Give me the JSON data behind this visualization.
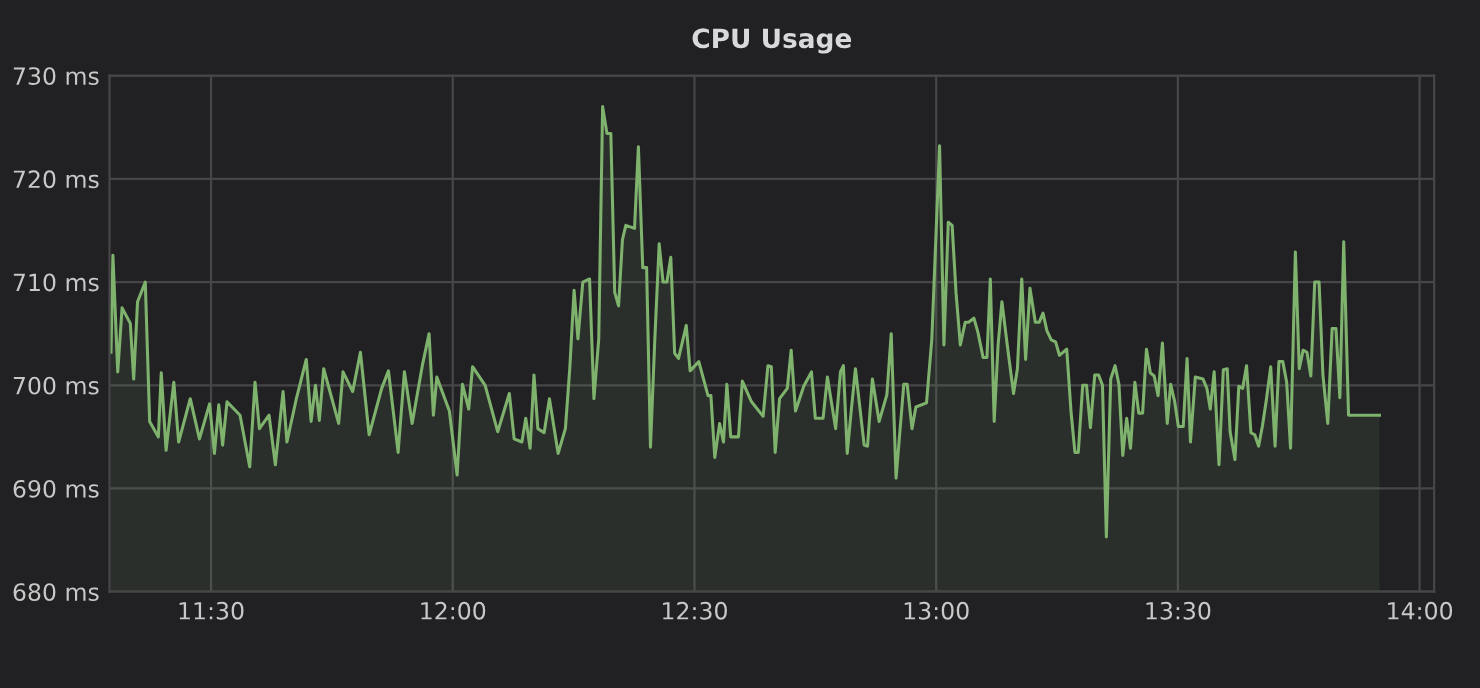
{
  "chart_data": {
    "type": "area",
    "title": "CPU Usage",
    "x": [
      11.293,
      11.297,
      11.307,
      11.316,
      11.333,
      11.34,
      11.348,
      11.364,
      11.373,
      11.391,
      11.397,
      11.407,
      11.423,
      11.433,
      11.457,
      11.476,
      11.497,
      11.507,
      11.516,
      11.524,
      11.533,
      11.56,
      11.58,
      11.591,
      11.6,
      11.62,
      11.633,
      11.649,
      11.657,
      11.676,
      11.697,
      11.707,
      11.716,
      11.724,
      11.733,
      11.764,
      11.773,
      11.793,
      11.809,
      11.827,
      11.853,
      11.867,
      11.887,
      11.9,
      11.916,
      11.937,
      11.951,
      11.96,
      11.967,
      11.993,
      12.009,
      12.02,
      12.033,
      12.041,
      12.067,
      12.093,
      12.117,
      12.127,
      12.143,
      12.151,
      12.16,
      12.168,
      12.176,
      12.189,
      12.2,
      12.218,
      12.233,
      12.242,
      12.251,
      12.259,
      12.269,
      12.283,
      12.292,
      12.302,
      12.31,
      12.319,
      12.327,
      12.335,
      12.343,
      12.351,
      12.358,
      12.376,
      12.384,
      12.393,
      12.401,
      12.409,
      12.418,
      12.427,
      12.435,
      12.443,
      12.451,
      12.459,
      12.467,
      12.483,
      12.491,
      12.509,
      12.528,
      12.534,
      12.542,
      12.552,
      12.56,
      12.567,
      12.575,
      12.591,
      12.599,
      12.618,
      12.642,
      12.652,
      12.659,
      12.667,
      12.676,
      12.692,
      12.7,
      12.709,
      12.726,
      12.742,
      12.75,
      12.766,
      12.775,
      12.792,
      12.802,
      12.808,
      12.816,
      12.824,
      12.833,
      12.851,
      12.858,
      12.868,
      12.882,
      12.898,
      12.907,
      12.917,
      12.933,
      12.94,
      12.95,
      12.958,
      12.98,
      12.991,
      13.007,
      13.016,
      13.025,
      13.033,
      13.041,
      13.05,
      13.06,
      13.067,
      13.078,
      13.086,
      13.097,
      13.105,
      13.112,
      13.12,
      13.128,
      13.136,
      13.147,
      13.16,
      13.168,
      13.177,
      13.185,
      13.194,
      13.205,
      13.213,
      13.221,
      13.229,
      13.238,
      13.247,
      13.255,
      13.27,
      13.279,
      13.287,
      13.294,
      13.303,
      13.311,
      13.319,
      13.328,
      13.336,
      13.344,
      13.352,
      13.361,
      13.37,
      13.378,
      13.386,
      13.394,
      13.402,
      13.411,
      13.419,
      13.427,
      13.435,
      13.443,
      13.451,
      13.459,
      13.468,
      13.478,
      13.485,
      13.493,
      13.501,
      13.511,
      13.519,
      13.526,
      13.536,
      13.552,
      13.56,
      13.567,
      13.575,
      13.585,
      13.594,
      13.602,
      13.608,
      13.618,
      13.626,
      13.634,
      13.642,
      13.651,
      13.659,
      13.667,
      13.675,
      13.683,
      13.692,
      13.701,
      13.709,
      13.717,
      13.725,
      13.733,
      13.743,
      13.751,
      13.759,
      13.767,
      13.775,
      13.783,
      13.792,
      13.8,
      13.81,
      13.819,
      13.827,
      13.835,
      13.843,
      13.853,
      13.917
    ],
    "series": [
      {
        "color": "#7eb26d",
        "values": [
          703.2,
          712.6,
          701.3,
          707.5,
          706.0,
          700.6,
          708.1,
          710.0,
          696.5,
          695.0,
          701.2,
          693.7,
          700.3,
          694.5,
          698.7,
          694.8,
          698.2,
          693.4,
          698.1,
          694.2,
          698.4,
          697.1,
          692.1,
          700.3,
          695.8,
          697.1,
          692.3,
          699.4,
          694.5,
          698.6,
          702.5,
          696.5,
          700.0,
          696.6,
          701.6,
          696.3,
          701.3,
          699.4,
          703.2,
          695.2,
          699.7,
          701.4,
          693.5,
          701.3,
          696.3,
          701.9,
          705.0,
          697.1,
          700.8,
          697.5,
          691.3,
          700.1,
          697.7,
          701.8,
          700.0,
          695.5,
          699.2,
          694.8,
          694.5,
          696.8,
          693.9,
          701.0,
          695.8,
          695.4,
          698.7,
          693.4,
          695.8,
          701.6,
          709.2,
          704.5,
          710.0,
          710.3,
          698.7,
          704.5,
          727.0,
          724.4,
          724.4,
          709.0,
          707.7,
          714.1,
          715.5,
          715.2,
          723.1,
          711.4,
          711.4,
          694.0,
          704.5,
          713.7,
          710.0,
          710.0,
          712.4,
          703.1,
          702.6,
          705.8,
          701.4,
          702.3,
          699.0,
          699.0,
          693.0,
          696.3,
          694.5,
          700.1,
          695.0,
          695.0,
          700.4,
          698.4,
          697.0,
          701.9,
          701.8,
          693.5,
          698.7,
          699.7,
          703.4,
          697.5,
          699.9,
          701.3,
          696.8,
          696.8,
          700.8,
          695.8,
          701.3,
          701.9,
          693.4,
          697.4,
          701.6,
          694.2,
          694.1,
          700.6,
          696.5,
          699.1,
          705.0,
          691.0,
          700.1,
          700.1,
          695.8,
          697.9,
          698.3,
          704.5,
          723.2,
          703.9,
          715.8,
          715.5,
          709.0,
          703.9,
          706.1,
          706.1,
          706.5,
          705.2,
          702.7,
          702.7,
          710.3,
          696.5,
          703.9,
          708.1,
          703.9,
          699.2,
          701.6,
          710.3,
          702.5,
          709.4,
          706.1,
          706.1,
          707.0,
          705.3,
          704.4,
          704.2,
          702.9,
          703.5,
          697.4,
          693.5,
          693.5,
          700.0,
          700.0,
          695.9,
          701.0,
          701.0,
          700.0,
          685.3,
          700.6,
          701.9,
          700.1,
          693.2,
          696.8,
          693.9,
          700.3,
          697.3,
          697.3,
          703.5,
          701.2,
          700.9,
          699.0,
          704.1,
          696.3,
          700.1,
          698.5,
          696.0,
          696.0,
          702.6,
          694.5,
          700.8,
          700.6,
          699.7,
          697.7,
          701.3,
          692.3,
          701.5,
          701.6,
          695.5,
          692.8,
          699.9,
          699.7,
          701.9,
          695.4,
          695.2,
          694.1,
          696.1,
          698.6,
          701.8,
          694.1,
          702.3,
          702.3,
          700.3,
          693.9,
          712.9,
          701.6,
          703.4,
          703.2,
          700.9,
          710.0,
          710.0,
          701.0,
          696.3,
          705.5,
          705.5,
          698.8,
          713.9,
          697.1,
          697.1
        ]
      }
    ],
    "xlim": [
      11.29,
      14.03
    ],
    "xticks": [
      {
        "value": 11.5,
        "label": "11:30"
      },
      {
        "value": 12,
        "label": "12:00"
      },
      {
        "value": 12.5,
        "label": "12:30"
      },
      {
        "value": 13,
        "label": "13:00"
      },
      {
        "value": 13.5,
        "label": "13:30"
      },
      {
        "value": 14,
        "label": "14:00"
      }
    ],
    "ylim": [
      680,
      730
    ],
    "yticks": [
      {
        "value": 680,
        "label": "680 ms"
      },
      {
        "value": 690,
        "label": "690 ms"
      },
      {
        "value": 700,
        "label": "700 ms"
      },
      {
        "value": 710,
        "label": "710 ms"
      },
      {
        "value": 720,
        "label": "720 ms"
      },
      {
        "value": 730,
        "label": "730 ms"
      }
    ],
    "grid": true
  }
}
